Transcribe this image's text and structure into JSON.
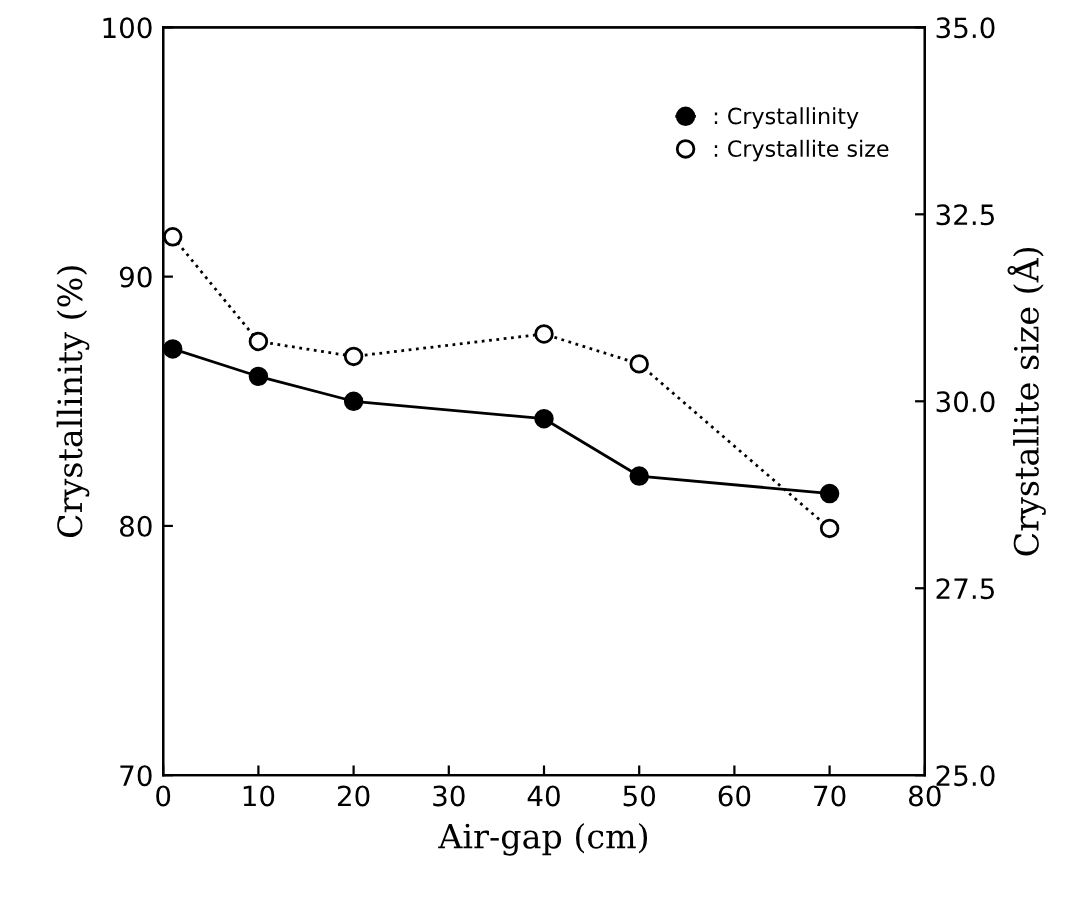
{
  "chart_data": {
    "type": "line",
    "xlabel": "Air-gap (cm)",
    "ylabel": "Crystallinity (%)",
    "y2label": "Crystallite size (Å)",
    "xlim": [
      0,
      80
    ],
    "xticks": [
      0,
      10,
      20,
      30,
      40,
      50,
      60,
      70,
      80
    ],
    "ylim": [
      70,
      100
    ],
    "yticks": [
      70,
      80,
      90,
      100
    ],
    "y2lim": [
      25,
      35
    ],
    "y2ticks": [
      {
        "value": 25,
        "label": "25.0"
      },
      {
        "value": 27.5,
        "label": "27.5"
      },
      {
        "value": 30,
        "label": "30.0"
      },
      {
        "value": 32.5,
        "label": "32.5"
      },
      {
        "value": 35,
        "label": "35.0"
      }
    ],
    "grid": false,
    "legend": "top right",
    "series": [
      {
        "name": ": Crystallinity",
        "color": "#000000",
        "x": [
          1,
          10,
          20,
          40,
          50,
          70
        ],
        "values": [
          87.1,
          86.0,
          85.0,
          84.3,
          82.0,
          81.3
        ],
        "marker": "circle",
        "line_style": "solid"
      },
      {
        "name": ": Crystallite size",
        "color": "#000000",
        "axis": "y2",
        "x": [
          1,
          10,
          20,
          40,
          50,
          70
        ],
        "values": [
          32.2,
          30.8,
          30.6,
          30.9,
          30.5,
          28.3
        ],
        "marker": "circle",
        "line_style": "dotted"
      }
    ]
  }
}
